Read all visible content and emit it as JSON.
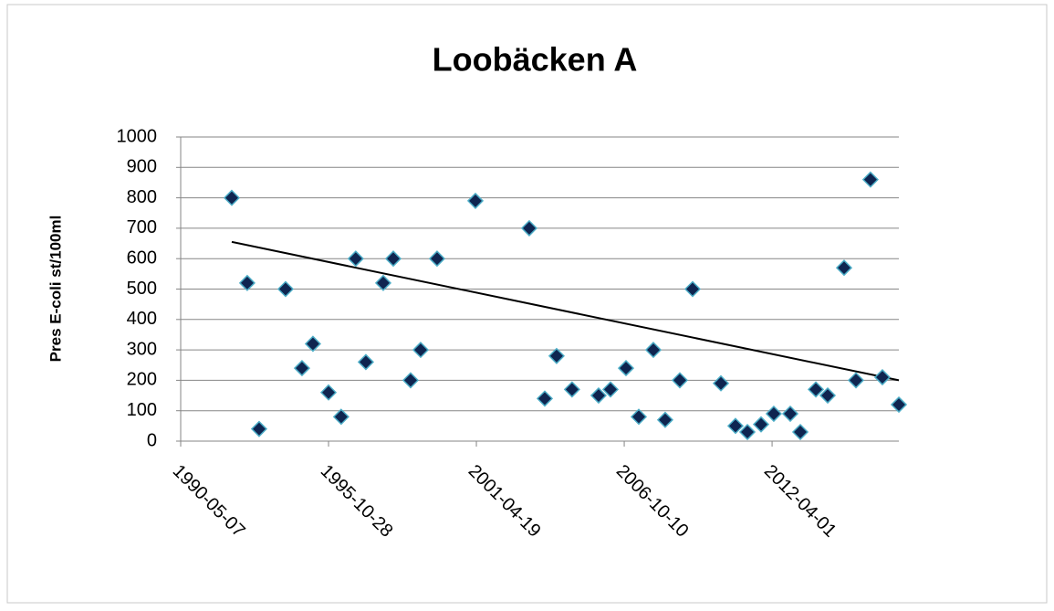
{
  "chart_data": {
    "type": "scatter",
    "title": "Loobäcken A",
    "y_label": "Pres E-coli st/100ml",
    "x": [
      "1992-03-28",
      "1992-10-23",
      "1993-04-02",
      "1994-03-26",
      "1994-11-03",
      "1995-03-31",
      "1995-10-28",
      "1996-04-16",
      "1996-10-30",
      "1997-03-16",
      "1997-11-06",
      "1998-03-22",
      "1998-11-11",
      "1999-03-27",
      "1999-11-04",
      "2001-04-06",
      "2003-04-04",
      "2003-10-31",
      "2004-04-08",
      "2004-11-03",
      "2005-10-28",
      "2006-04-07",
      "2006-11-03",
      "2007-04-25",
      "2007-11-08",
      "2008-04-16",
      "2008-10-31",
      "2009-04-22",
      "2010-05-10",
      "2010-11-23",
      "2011-05-03",
      "2011-11-04",
      "2012-04-24",
      "2012-12-03",
      "2013-04-18",
      "2013-11-14",
      "2014-04-23",
      "2014-12-01",
      "2015-05-11",
      "2015-11-23",
      "2016-05-02",
      "2016-12-11"
    ],
    "values": [
      800,
      520,
      40,
      500,
      240,
      320,
      160,
      80,
      600,
      260,
      520,
      600,
      200,
      300,
      600,
      790,
      700,
      140,
      280,
      170,
      150,
      170,
      240,
      80,
      300,
      70,
      200,
      500,
      190,
      50,
      30,
      55,
      90,
      90,
      30,
      170,
      150,
      570,
      200,
      860,
      210,
      120
    ],
    "color": "#0f2550",
    "edge_color": "#4bacc6",
    "trendline": {
      "x": [
        "1992-03-28",
        "2016-12-11"
      ],
      "values": [
        655,
        200
      ],
      "color": "#000000"
    },
    "xlim": [
      "1990-05-07",
      "2016-12-11"
    ],
    "xticks": [
      "1990-05-07",
      "1995-10-28",
      "2001-04-19",
      "2006-10-10",
      "2012-04-01"
    ],
    "ylim": [
      0,
      1000
    ],
    "yticks": [
      0,
      100,
      200,
      300,
      400,
      500,
      600,
      700,
      800,
      900,
      1000
    ],
    "grid": true
  }
}
